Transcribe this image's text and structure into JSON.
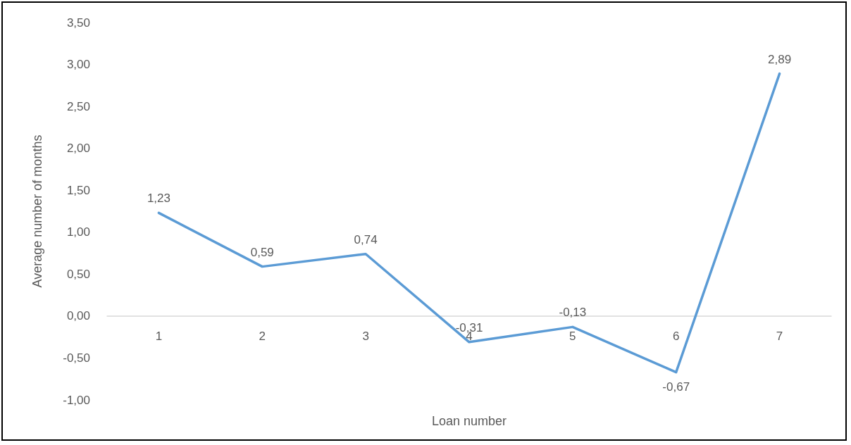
{
  "chart_data": {
    "type": "line",
    "xlabel": "Loan number",
    "ylabel": "Average number of months",
    "categories": [
      "1",
      "2",
      "3",
      "4",
      "5",
      "6",
      "7"
    ],
    "series": [
      {
        "color": "#5b9bd5",
        "values": [
          1.23,
          0.59,
          0.74,
          -0.31,
          -0.13,
          -0.67,
          2.89
        ],
        "value_labels": [
          "1,23",
          "0,59",
          "0,74",
          "-0,31",
          "-0,13",
          "-0,67",
          "2,89"
        ]
      }
    ],
    "ylim": [
      -1,
      3.5
    ],
    "yticks": [
      {
        "value": -1,
        "label": "-1,00"
      },
      {
        "value": -0.5,
        "label": "-0,50"
      },
      {
        "value": 0,
        "label": "0,00"
      },
      {
        "value": 0.5,
        "label": "0,50"
      },
      {
        "value": 1,
        "label": "1,00"
      },
      {
        "value": 1.5,
        "label": "1,50"
      },
      {
        "value": 2,
        "label": "2,00"
      },
      {
        "value": 2.5,
        "label": "2,50"
      },
      {
        "value": 3,
        "label": "3,00"
      },
      {
        "value": 3.5,
        "label": "3,50"
      }
    ],
    "grid": false,
    "marker": "none",
    "line_style": "solid"
  }
}
